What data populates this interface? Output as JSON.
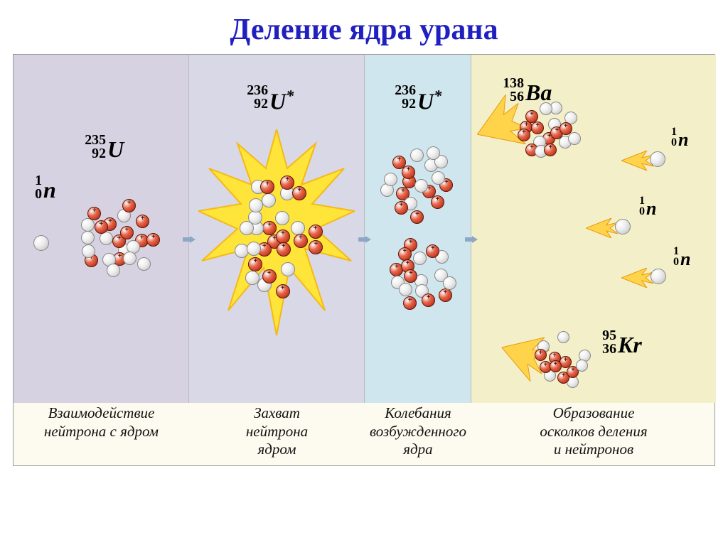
{
  "title": "Деление ядра урана",
  "title_color": "#2020c0",
  "title_fontsize": 42,
  "panels": {
    "p1": {
      "bg": "#d7d2e2",
      "caption": "Взаимодействие\nнейтрона с ядром"
    },
    "p2": {
      "bg": "#d8d8e6",
      "caption": "Захват\nнейтрона\nядром"
    },
    "p3": {
      "bg": "#cfe6ef",
      "caption": "Колебания\nвозбужденного\nядра"
    },
    "p4": {
      "bg": "#f3f0c9",
      "caption": "Образование\nосколков деления\nи нейтронов"
    }
  },
  "caption_fontsize": 21,
  "isotopes": {
    "neutron": {
      "mass": "1",
      "atomic": "0",
      "sym": "n",
      "fontsize": 30
    },
    "u235": {
      "mass": "235",
      "atomic": "92",
      "sym": "U",
      "fontsize": 32
    },
    "u236a": {
      "mass": "236",
      "atomic": "92",
      "sym": "U",
      "star": "*",
      "fontsize": 32
    },
    "u236b": {
      "mass": "236",
      "atomic": "92",
      "sym": "U",
      "star": "*",
      "fontsize": 32
    },
    "ba138": {
      "mass": "138",
      "atomic": "56",
      "sym": "Ba",
      "fontsize": 30
    },
    "kr95": {
      "mass": "95",
      "atomic": "36",
      "sym": "Kr",
      "fontsize": 30
    }
  },
  "colors": {
    "proton_fill": "#d94a2e",
    "proton_border": "#5a1808",
    "neutron_fill": "#e8e8e8",
    "neutron_border": "#888888",
    "burst_fill": "#ffe53a",
    "burst_stroke": "#f7b815",
    "trail_fill": "#ffd34a",
    "trail_stroke": "#e89a10"
  },
  "nuclei": {
    "u235": {
      "size": 120,
      "nucleon_d": 19,
      "count": 22
    },
    "u236": {
      "size": 170,
      "nucleon_d": 20,
      "count": 28,
      "elongated": true
    },
    "split_top": {
      "size": 110,
      "nucleon_d": 19,
      "count": 18
    },
    "split_bot": {
      "size": 105,
      "nucleon_d": 19,
      "count": 17
    },
    "ba138": {
      "size": 100,
      "nucleon_d": 18,
      "count": 17
    },
    "kr95": {
      "size": 85,
      "nucleon_d": 17,
      "count": 13
    }
  }
}
